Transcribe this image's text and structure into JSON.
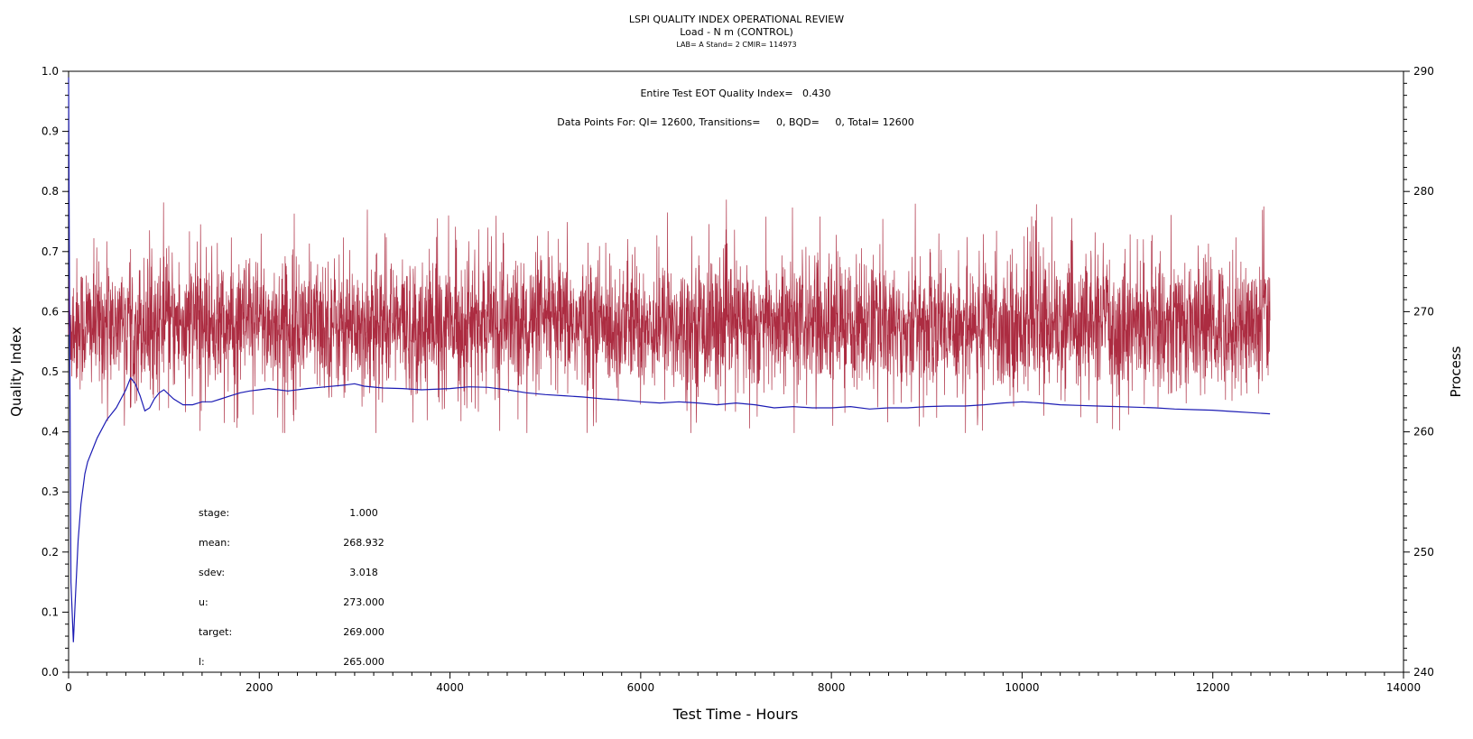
{
  "chart_data": {
    "type": "line",
    "title": "LSPI QUALITY INDEX OPERATIONAL REVIEW",
    "subtitle": "Load - N m (CONTROL)",
    "subsubtitle": "LAB= A Stand= 2 CMIR= 114973",
    "xlabel": "Test Time - Hours",
    "ylabel_left": "Quality Index",
    "ylabel_right": "Process",
    "xlim": [
      0,
      14000
    ],
    "ylim_left": [
      0.0,
      1.0
    ],
    "ylim_right": [
      240,
      290
    ],
    "x_ticks": [
      "0",
      "2000",
      "4000",
      "6000",
      "8000",
      "10000",
      "12000",
      "14000"
    ],
    "y_left_ticks": [
      "0.0",
      "0.1",
      "0.2",
      "0.3",
      "0.4",
      "0.5",
      "0.6",
      "0.7",
      "0.8",
      "0.9",
      "1.0"
    ],
    "y_right_ticks": [
      "240",
      "250",
      "260",
      "270",
      "280",
      "290"
    ],
    "annotations": {
      "eot": "Entire Test EOT Quality Index=   0.430",
      "points": "Data Points For: QI= 12600, Transitions=     0, BQD=     0, Total= 12600"
    },
    "stats": [
      {
        "label": "stage:",
        "value": "1.000"
      },
      {
        "label": "mean:",
        "value": "268.932"
      },
      {
        "label": "sdev:",
        "value": "3.018"
      },
      {
        "label": "u:",
        "value": "273.000"
      },
      {
        "label": "target:",
        "value": "269.000"
      },
      {
        "label": "l:",
        "value": "265.000"
      }
    ],
    "series": [
      {
        "axis": "right",
        "color": "#a3152c",
        "x_range": [
          0,
          12600
        ],
        "target": 269.0,
        "mean": 268.932,
        "sdev": 3.018,
        "min": 259.9,
        "max": 279.6
      },
      {
        "axis": "left",
        "color": "#1c1cb4",
        "x": [
          0,
          10,
          25,
          50,
          70,
          100,
          130,
          170,
          200,
          250,
          300,
          400,
          500,
          600,
          650,
          700,
          750,
          800,
          850,
          900,
          950,
          1000,
          1100,
          1200,
          1300,
          1400,
          1500,
          1600,
          1700,
          1800,
          1900,
          2000,
          2100,
          2200,
          2300,
          2500,
          2700,
          2900,
          3000,
          3100,
          3300,
          3500,
          3700,
          4000,
          4200,
          4400,
          4600,
          4800,
          5000,
          5200,
          5400,
          5600,
          5800,
          6000,
          6200,
          6400,
          6600,
          6800,
          7000,
          7200,
          7400,
          7600,
          7800,
          8000,
          8200,
          8400,
          8600,
          8800,
          9000,
          9200,
          9400,
          9600,
          9800,
          10000,
          10200,
          10400,
          10600,
          10800,
          11000,
          11200,
          11400,
          11600,
          11800,
          12000,
          12200,
          12400,
          12600
        ],
        "y": [
          0.99,
          0.6,
          0.15,
          0.05,
          0.12,
          0.22,
          0.28,
          0.33,
          0.35,
          0.37,
          0.39,
          0.42,
          0.44,
          0.47,
          0.49,
          0.48,
          0.46,
          0.435,
          0.44,
          0.455,
          0.465,
          0.47,
          0.455,
          0.445,
          0.445,
          0.45,
          0.45,
          0.455,
          0.46,
          0.465,
          0.468,
          0.47,
          0.472,
          0.47,
          0.468,
          0.472,
          0.475,
          0.478,
          0.48,
          0.476,
          0.473,
          0.472,
          0.47,
          0.472,
          0.475,
          0.474,
          0.47,
          0.465,
          0.462,
          0.46,
          0.458,
          0.455,
          0.453,
          0.45,
          0.448,
          0.45,
          0.448,
          0.445,
          0.448,
          0.445,
          0.44,
          0.442,
          0.44,
          0.44,
          0.442,
          0.438,
          0.44,
          0.44,
          0.442,
          0.443,
          0.443,
          0.445,
          0.448,
          0.45,
          0.448,
          0.445,
          0.444,
          0.443,
          0.442,
          0.441,
          0.44,
          0.438,
          0.437,
          0.436,
          0.434,
          0.432,
          0.43
        ]
      }
    ]
  }
}
